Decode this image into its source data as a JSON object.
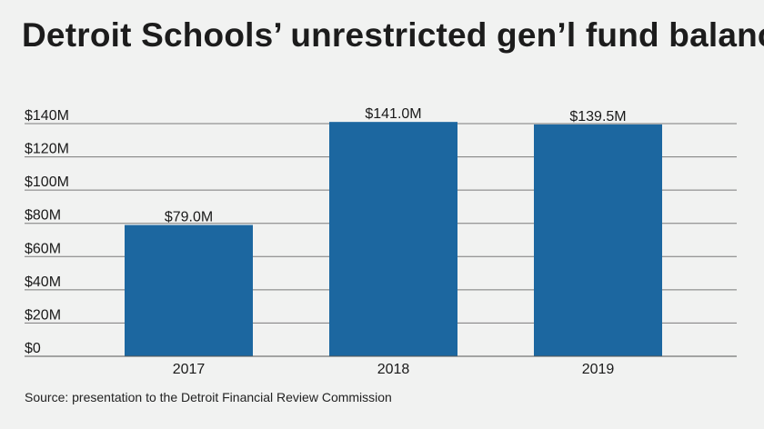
{
  "title": "Detroit Schools’ unrestricted gen’l fund balance",
  "source": "Source: presentation to the Detroit Financial Review Commission",
  "colors": {
    "bar": "#1c67a0",
    "grid": "#7a7a7a",
    "background": "#f1f2f1"
  },
  "chart_data": {
    "type": "bar",
    "categories": [
      "2017",
      "2018",
      "2019"
    ],
    "values": [
      79.0,
      141.0,
      139.5
    ],
    "data_labels": [
      "$79.0M",
      "$141.0M",
      "$139.5M"
    ],
    "ylim": [
      0,
      140
    ],
    "yticks": [
      0,
      20,
      40,
      60,
      80,
      100,
      120,
      140
    ],
    "ytick_labels": [
      "$0",
      "$20M",
      "$40M",
      "$60M",
      "$80M",
      "$100M",
      "$120M",
      "$140M"
    ],
    "grid": true,
    "xlabel": "",
    "ylabel": ""
  }
}
